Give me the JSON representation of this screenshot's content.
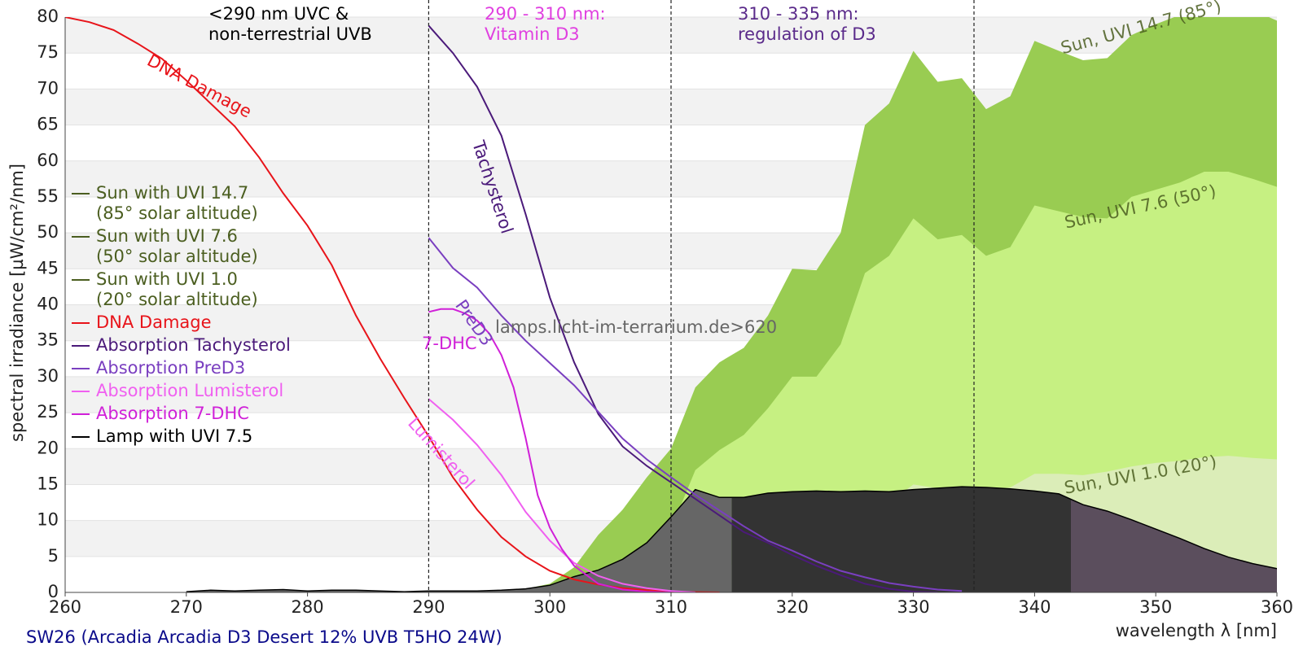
{
  "chart_data": {
    "type": "line",
    "title": "SW26 (Arcadia Arcadia D3 Desert 12% UVB T5HO 24W)",
    "x_label": "wavelength λ [nm]",
    "y_label": "spectral irradiance [µW/cm²/nm]",
    "xlim": [
      260,
      360
    ],
    "ylim": [
      0,
      80
    ],
    "xticks": [
      260,
      270,
      280,
      290,
      300,
      310,
      320,
      330,
      340,
      350,
      360
    ],
    "yticks": [
      0,
      5,
      10,
      15,
      20,
      25,
      30,
      35,
      40,
      45,
      50,
      55,
      60,
      65,
      70,
      75,
      80
    ],
    "grid": "bands",
    "legend": "left",
    "vlines": [
      290,
      310,
      335
    ],
    "series": [
      {
        "name": "Sun with UVI 14.7\n(85° solar altitude)",
        "type": "area",
        "color": "#99cc52",
        "legend_color": "#4b5e20",
        "x": [
          296,
          298,
          300,
          302,
          304,
          306,
          308,
          310,
          312,
          314,
          316,
          318,
          320,
          322,
          324,
          326,
          328,
          330,
          332,
          334,
          336,
          338,
          340,
          342,
          344,
          346,
          348,
          350,
          352,
          354,
          356,
          358,
          360
        ],
        "values": [
          0.1,
          0.5,
          1.2,
          3.5,
          8,
          11.5,
          16,
          20,
          28.5,
          32,
          34,
          38.5,
          45,
          44.8,
          50,
          65,
          68,
          75.3,
          71,
          71.5,
          67.2,
          69,
          76.7,
          75.3,
          74,
          74.3,
          77.5,
          79,
          80.3,
          81.5,
          81.8,
          81,
          79.5
        ]
      },
      {
        "name": "Sun with UVI 7.6\n(50° solar altitude)",
        "type": "area",
        "color": "#c6f082",
        "legend_color": "#4b5e20",
        "x": [
          296,
          298,
          300,
          302,
          304,
          306,
          308,
          310,
          312,
          314,
          316,
          318,
          320,
          322,
          324,
          326,
          328,
          330,
          332,
          334,
          336,
          338,
          340,
          342,
          344,
          346,
          348,
          350,
          352,
          354,
          356,
          358,
          360
        ],
        "values": [
          0,
          0.1,
          0.4,
          0.5,
          1.6,
          3.5,
          6,
          8.8,
          17,
          19.8,
          21.9,
          25.6,
          30,
          30,
          34.5,
          44.4,
          46.8,
          52,
          49.1,
          49.7,
          46.8,
          48,
          53.8,
          53,
          52.2,
          52,
          55,
          56,
          57,
          58.5,
          58.5,
          57.5,
          56.4
        ]
      },
      {
        "name": "Sun with UVI 1.0\n(20° solar altitude)",
        "type": "area",
        "color": "#dbedb8",
        "legend_color": "#4b5e20",
        "x": [
          296,
          298,
          300,
          302,
          304,
          306,
          308,
          310,
          312,
          314,
          316,
          318,
          320,
          322,
          324,
          326,
          328,
          330,
          332,
          334,
          336,
          338,
          340,
          342,
          344,
          346,
          348,
          350,
          352,
          354,
          356,
          358,
          360
        ],
        "values": [
          0,
          0,
          0,
          0.1,
          0.2,
          0.4,
          0.7,
          1.2,
          2.5,
          3.5,
          4.2,
          5.2,
          6.5,
          7,
          8.5,
          11.5,
          12.5,
          15,
          14.5,
          14.7,
          14.2,
          14.6,
          16.5,
          16.5,
          16.3,
          16.8,
          17.5,
          18,
          18.3,
          18.8,
          19,
          18.7,
          18.5
        ]
      },
      {
        "name": "Lamp with UVI 7.5",
        "type": "banded-area",
        "color": "#000000",
        "legend_color": "#000000",
        "fill_bands": [
          {
            "from": 260,
            "to": 315,
            "color": "#666666"
          },
          {
            "from": 315,
            "to": 343,
            "color": "#333333"
          },
          {
            "from": 343,
            "to": 360,
            "color": "#5b4e5d"
          }
        ],
        "x": [
          270,
          272,
          274,
          276,
          278,
          280,
          282,
          284,
          286,
          288,
          290,
          292,
          294,
          296,
          298,
          300,
          302,
          304,
          306,
          308,
          310,
          312,
          314,
          316,
          318,
          320,
          322,
          324,
          326,
          328,
          330,
          332,
          334,
          336,
          338,
          340,
          342,
          344,
          346,
          348,
          350,
          352,
          354,
          356,
          358,
          360
        ],
        "values": [
          0.1,
          0.3,
          0.2,
          0.3,
          0.4,
          0.2,
          0.3,
          0.3,
          0.2,
          0.1,
          0.2,
          0.2,
          0.2,
          0.3,
          0.5,
          1,
          2.2,
          3.1,
          4.6,
          6.9,
          10.5,
          14.3,
          13.2,
          13.2,
          13.8,
          14,
          14.1,
          14,
          14.1,
          14,
          14.3,
          14.5,
          14.7,
          14.6,
          14.4,
          14.1,
          13.7,
          12.2,
          11.3,
          10.1,
          8.8,
          7.5,
          6.1,
          4.9,
          4,
          3.3
        ]
      },
      {
        "name": "DNA Damage",
        "type": "line",
        "color": "#e8141a",
        "legend_color": "#e8141a",
        "x": [
          260,
          262,
          264,
          266,
          268,
          270,
          272,
          274,
          276,
          278,
          280,
          282,
          284,
          286,
          288,
          290,
          292,
          294,
          296,
          298,
          300,
          302,
          304,
          306,
          308,
          310,
          312,
          314
        ],
        "values": [
          80,
          79.3,
          78.2,
          76.3,
          74.2,
          71.2,
          68,
          64.8,
          60.5,
          55.5,
          51,
          45.5,
          38.5,
          32.5,
          27,
          21.7,
          16,
          11.5,
          7.7,
          5,
          3,
          1.8,
          1.1,
          0.6,
          0.3,
          0.1,
          0.05,
          0
        ]
      },
      {
        "name": "Absorption Tachysterol",
        "type": "line",
        "color": "#4b1a7a",
        "legend_color": "#4b1a7a",
        "x": [
          290,
          292,
          294,
          296,
          298,
          300,
          302,
          304,
          306,
          308,
          310,
          312,
          314,
          316,
          318,
          320,
          322,
          324,
          326,
          328,
          330,
          332
        ],
        "values": [
          78.8,
          75,
          70.3,
          63.5,
          52.6,
          41,
          32,
          24.8,
          20.3,
          17.6,
          15.3,
          13,
          10.7,
          8.4,
          6.9,
          5.2,
          3.7,
          2.4,
          1.2,
          0.5,
          0.1,
          0
        ]
      },
      {
        "name": "Absorption PreD3",
        "type": "line",
        "color": "#7a3fc0",
        "legend_color": "#7a3fc0",
        "x": [
          290,
          292,
          294,
          296,
          298,
          300,
          302,
          304,
          306,
          308,
          310,
          312,
          314,
          316,
          318,
          320,
          322,
          324,
          326,
          328,
          330,
          332,
          334
        ],
        "values": [
          49.3,
          45.1,
          42.4,
          38.5,
          35,
          31.9,
          28.8,
          25.1,
          21.4,
          18.5,
          16,
          13.6,
          11.4,
          9.2,
          7.2,
          5.8,
          4.3,
          3,
          2.1,
          1.3,
          0.8,
          0.4,
          0.2
        ]
      },
      {
        "name": "Absorption Lumisterol",
        "type": "line",
        "color": "#f060f0",
        "legend_color": "#f060f0",
        "x": [
          290,
          292,
          294,
          296,
          298,
          300,
          302,
          304,
          306,
          308,
          310,
          312
        ],
        "values": [
          26.9,
          24,
          20.5,
          16.3,
          11.2,
          7.2,
          4.1,
          2.3,
          1.2,
          0.6,
          0.2,
          0
        ]
      },
      {
        "name": "Absorption 7-DHC",
        "type": "line",
        "color": "#d020d8",
        "legend_color": "#d020d8",
        "x": [
          290,
          291,
          292,
          293,
          294,
          295,
          296,
          297,
          298,
          299,
          300,
          301,
          302,
          304,
          306,
          308,
          310
        ],
        "values": [
          39,
          39.4,
          39.4,
          38.8,
          37.8,
          36,
          33,
          28.5,
          21.5,
          13.5,
          9,
          6,
          3.7,
          1.2,
          0.4,
          0.1,
          0
        ]
      }
    ],
    "legend_order": [
      0,
      1,
      2,
      4,
      5,
      6,
      7,
      8,
      3
    ],
    "annotations": [
      {
        "text": "<290 nm UVC &\nnon-terrestrial UVB",
        "color": "#000000"
      },
      {
        "text": "290 - 310 nm:\nVitamin D3",
        "color": "#e040e0"
      },
      {
        "text": "310 - 335 nm:\nregulation of D3",
        "color": "#5a2a8a"
      },
      {
        "text": "DNA Damage",
        "color": "#e8141a"
      },
      {
        "text": "Tachysterol",
        "color": "#4b1a7a"
      },
      {
        "text": "PreD3",
        "color": "#7a3fc0"
      },
      {
        "text": "7-DHC",
        "color": "#d020d8"
      },
      {
        "text": "Lumisterol",
        "color": "#f060f0"
      },
      {
        "text": "Sun, UVI 14.7 (85°)",
        "color": "#4b5e20"
      },
      {
        "text": "Sun, UVI 7.6 (50°)",
        "color": "#4b5e20"
      },
      {
        "text": "Sun, UVI 1.0 (20°)",
        "color": "#4b5e20"
      },
      {
        "text": "lamps.licht-im-terrarium.de>620",
        "color": "#666666"
      }
    ]
  }
}
